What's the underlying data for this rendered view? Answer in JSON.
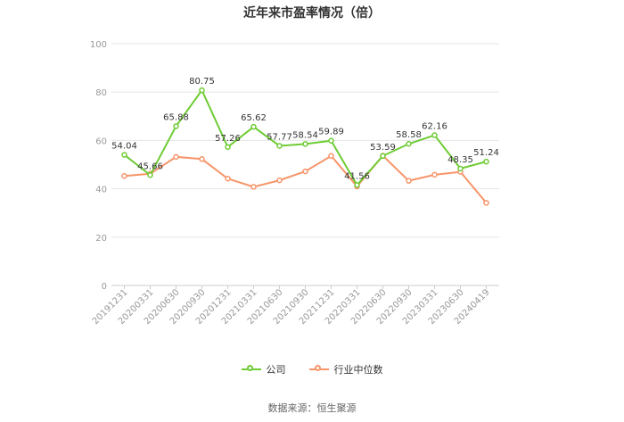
{
  "title": "近年来市盈率情况（倍）",
  "source_text": "数据来源：恒生聚源",
  "colors": {
    "company": "#6fcc35",
    "industry": "#f7956a",
    "grid": "#e6e6e6",
    "axis_text": "#999999"
  },
  "chart_data": {
    "type": "line",
    "categories": [
      "20191231",
      "20200331",
      "20200630",
      "20200930",
      "20201231",
      "20210331",
      "20210630",
      "20210930",
      "20211231",
      "20220331",
      "20220630",
      "20220930",
      "20230331",
      "20230630",
      "20240419"
    ],
    "ylim": [
      0,
      100
    ],
    "yticks": [
      0,
      20,
      40,
      60,
      80,
      100
    ],
    "grid": true,
    "legend_position": "bottom",
    "series": [
      {
        "name": "公司",
        "values": [
          54.04,
          45.66,
          65.88,
          80.75,
          57.26,
          65.62,
          57.77,
          58.54,
          59.89,
          41.56,
          53.59,
          58.58,
          62.16,
          48.35,
          51.24
        ],
        "labels": true
      },
      {
        "name": "行业中位数",
        "values": [
          45.3,
          46.2,
          53.2,
          52.3,
          44.2,
          40.8,
          43.5,
          47.2,
          53.6,
          41.0,
          53.7,
          43.3,
          45.8,
          47.0,
          34.2
        ],
        "labels": false
      }
    ]
  }
}
